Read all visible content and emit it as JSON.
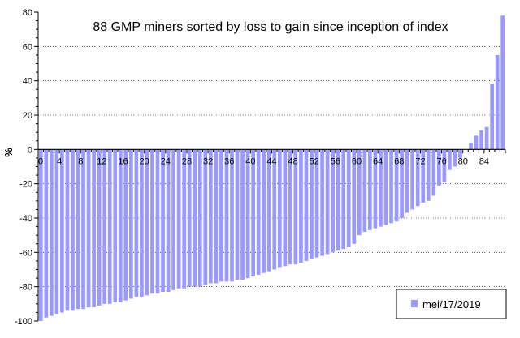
{
  "chart_data": {
    "type": "bar",
    "title": "88 GMP miners sorted by loss to gain since inception of index",
    "xlabel": "",
    "ylabel": "%",
    "ylim": [
      -100,
      80
    ],
    "yticks": [
      80,
      60,
      40,
      20,
      0,
      -20,
      -40,
      -60,
      -80,
      -100
    ],
    "xticks": [
      0,
      4,
      8,
      12,
      16,
      20,
      24,
      28,
      32,
      36,
      40,
      44,
      48,
      52,
      56,
      60,
      64,
      68,
      72,
      76,
      80,
      84
    ],
    "grid": true,
    "legend_position": "bottom-right",
    "series": [
      {
        "name": "mei/17/2019",
        "color": "#9999ff",
        "values": [
          -100,
          -98,
          -97,
          -96,
          -95,
          -94,
          -94,
          -93,
          -93,
          -92,
          -92,
          -91,
          -90,
          -90,
          -89,
          -89,
          -88,
          -87,
          -86,
          -86,
          -85,
          -84,
          -84,
          -83,
          -83,
          -82,
          -81,
          -81,
          -80,
          -80,
          -80,
          -79,
          -78,
          -78,
          -77,
          -77,
          -77,
          -76,
          -76,
          -75,
          -74,
          -73,
          -72,
          -71,
          -70,
          -69,
          -68,
          -67,
          -67,
          -66,
          -65,
          -64,
          -63,
          -62,
          -61,
          -60,
          -59,
          -58,
          -57,
          -55,
          -50,
          -48,
          -47,
          -46,
          -45,
          -44,
          -43,
          -42,
          -40,
          -37,
          -35,
          -33,
          -31,
          -30,
          -27,
          -21,
          -19,
          -12,
          -10,
          -5,
          0,
          4,
          8,
          11,
          13,
          38,
          55,
          78
        ]
      }
    ]
  }
}
